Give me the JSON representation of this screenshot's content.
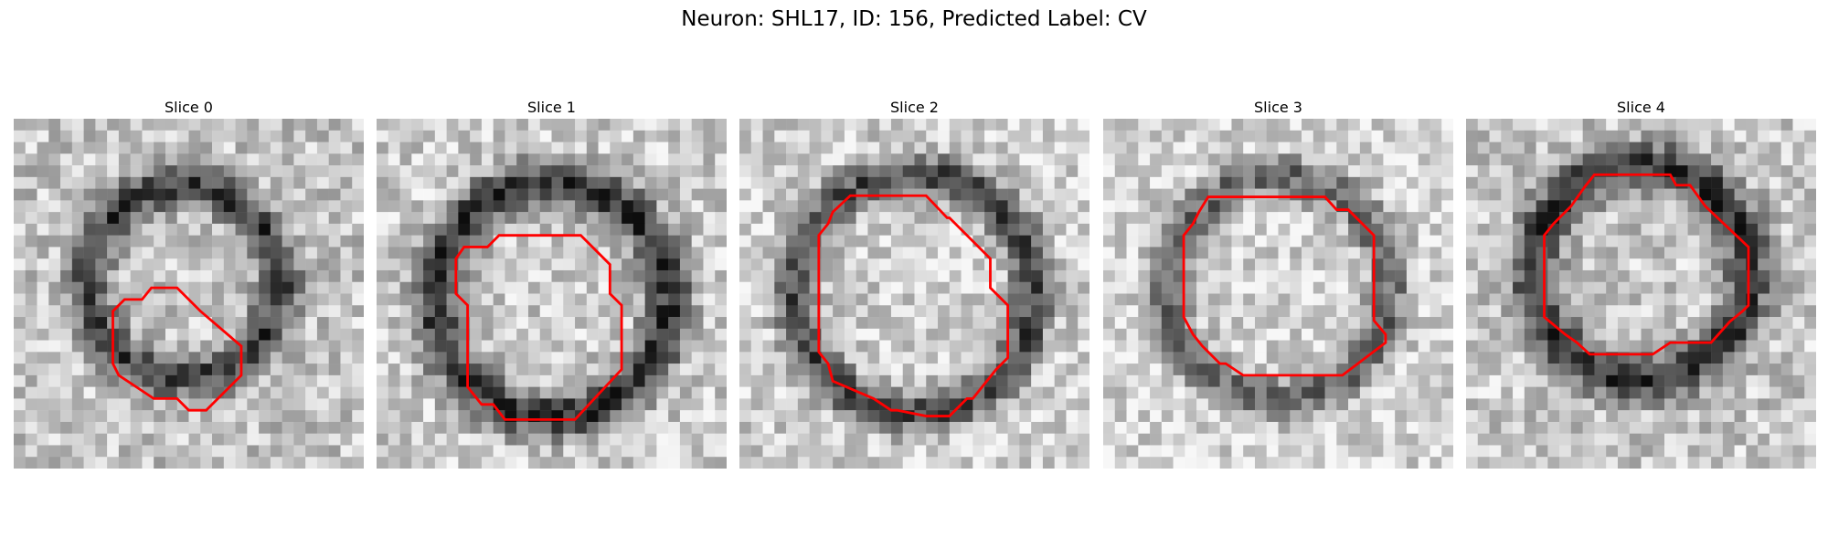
{
  "figure": {
    "suptitle": "Neuron: SHL17, ID: 156, Predicted Label: CV",
    "outline_color": "#ff0000",
    "panels": [
      {
        "title": "Slice 0"
      },
      {
        "title": "Slice 1"
      },
      {
        "title": "Slice 2"
      },
      {
        "title": "Slice 3"
      },
      {
        "title": "Slice 4"
      }
    ]
  }
}
